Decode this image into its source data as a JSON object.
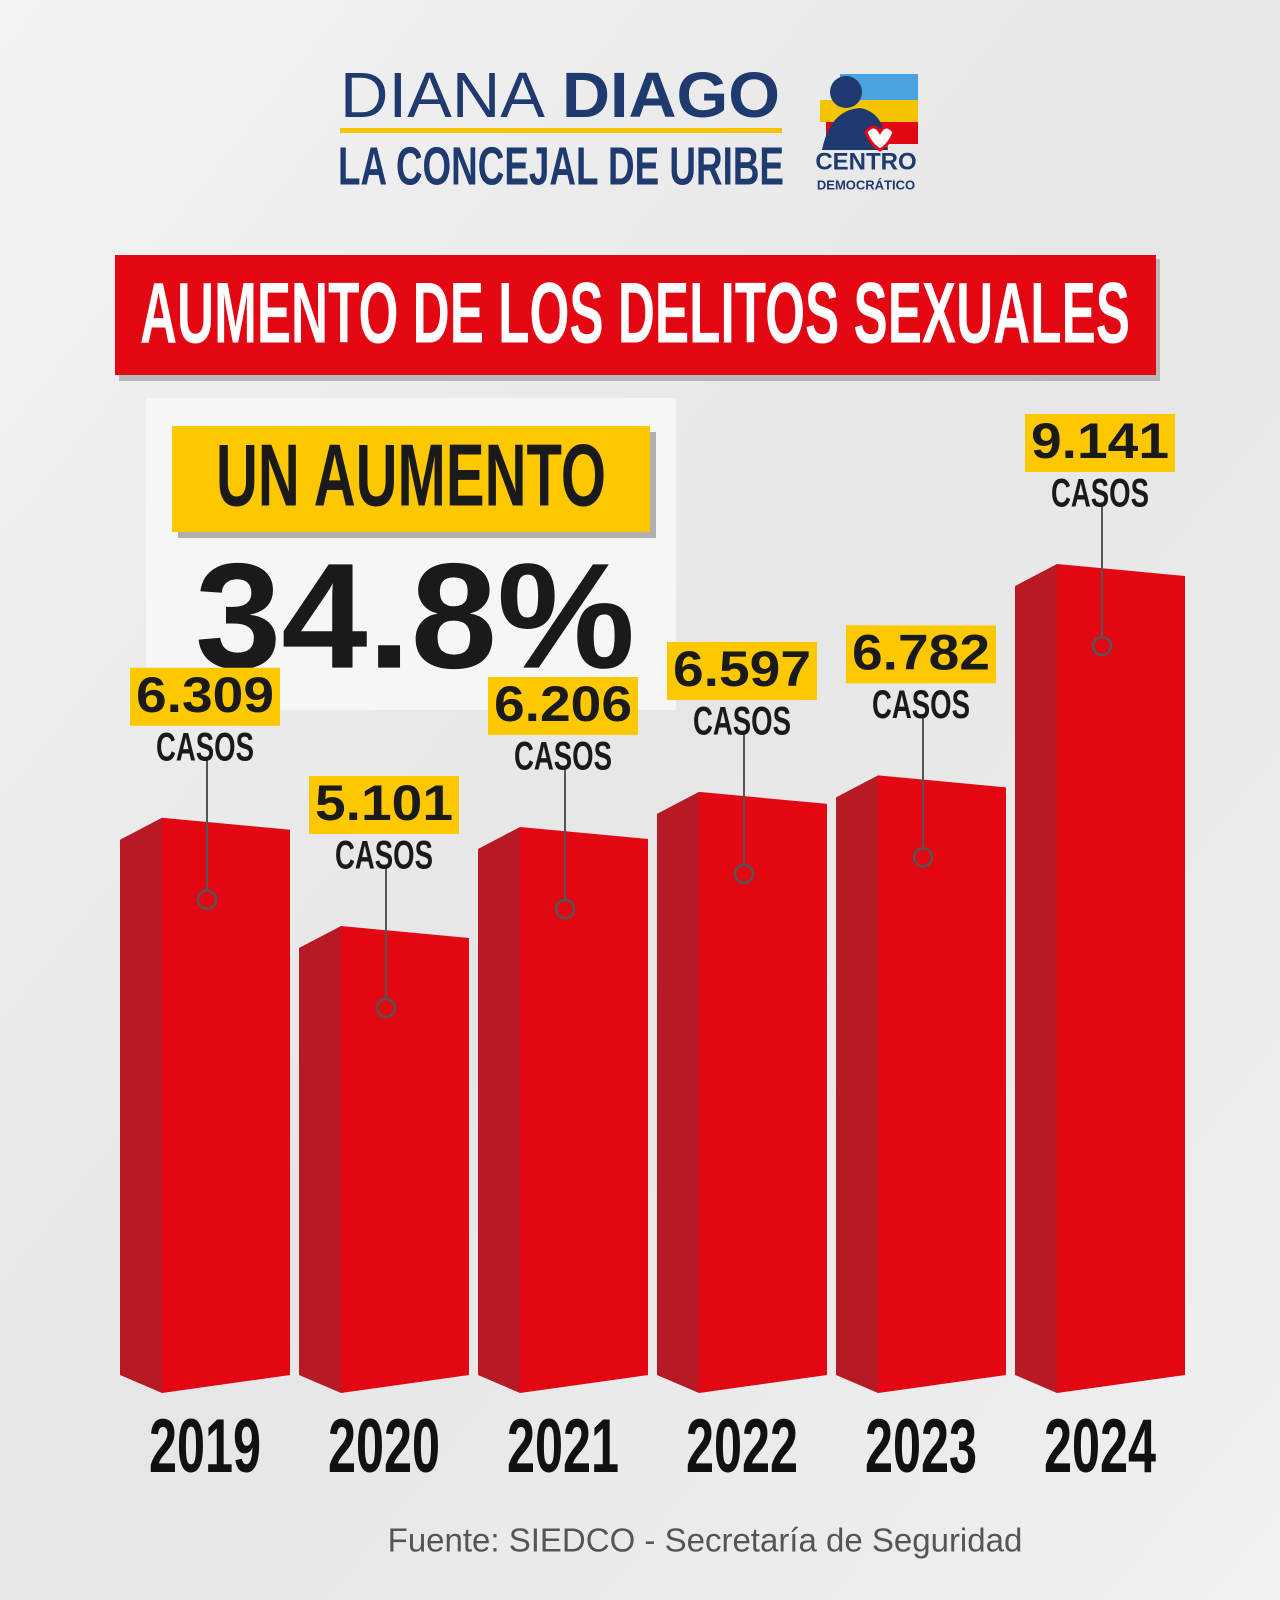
{
  "header": {
    "name_light": "DIANA",
    "name_bold": "DIAGO",
    "subtitle": "LA CONCEJAL DE URIBE",
    "logo_line1": "CENTRO",
    "logo_line2": "DEMOCRÁTICO"
  },
  "chart_data": {
    "type": "bar",
    "title": "AUMENTO DE LOS DELITOS SEXUALES",
    "annotation": {
      "label": "UN AUMENTO",
      "value": "34.8%"
    },
    "categories": [
      "2019",
      "2020",
      "2021",
      "2022",
      "2023",
      "2024"
    ],
    "values": [
      6309,
      5101,
      6206,
      6597,
      6782,
      9141
    ],
    "value_labels": [
      "6.309",
      "5.101",
      "6.206",
      "6.597",
      "6.782",
      "9.141"
    ],
    "unit_label": "CASOS",
    "color": "#e30613",
    "source": "Fuente: SIEDCO - Secretaría de Seguridad"
  }
}
